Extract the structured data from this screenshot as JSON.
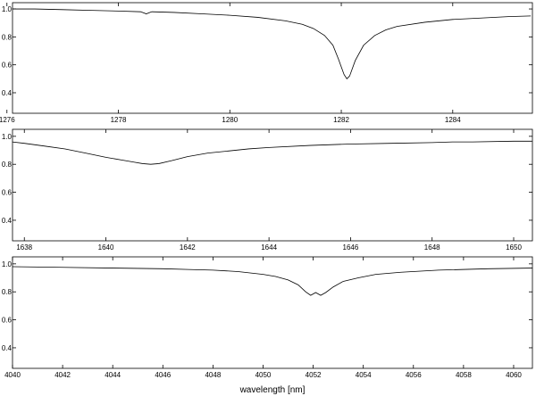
{
  "chart_data": [
    {
      "type": "line",
      "xlim": [
        1276.1,
        1285.43
      ],
      "ylim": [
        0.253,
        1.045
      ],
      "xticks": [
        1276,
        1278,
        1280,
        1282,
        1284
      ],
      "yticks": [
        0.4,
        0.6,
        0.8,
        {
          "value": 1,
          "label": "1.0"
        }
      ],
      "series": [
        {
          "color": "#000000",
          "x": [
            1276.1,
            1276.5,
            1277,
            1277.5,
            1278,
            1278.4,
            1278.5,
            1278.6,
            1279,
            1279.5,
            1280,
            1280.5,
            1281,
            1281.3,
            1281.5,
            1281.7,
            1281.85,
            1281.95,
            1282.05,
            1282.1,
            1282.15,
            1282.25,
            1282.4,
            1282.6,
            1282.8,
            1283,
            1283.5,
            1284,
            1284.5,
            1285,
            1285.4
          ],
          "values": [
            1.0,
            1.0,
            0.995,
            0.99,
            0.985,
            0.98,
            0.965,
            0.98,
            0.975,
            0.965,
            0.955,
            0.94,
            0.915,
            0.89,
            0.86,
            0.81,
            0.74,
            0.64,
            0.53,
            0.5,
            0.52,
            0.63,
            0.74,
            0.81,
            0.85,
            0.875,
            0.905,
            0.925,
            0.935,
            0.945,
            0.95
          ]
        }
      ]
    },
    {
      "type": "line",
      "xlim": [
        1637.71,
        1650.46
      ],
      "ylim": [
        0.253,
        1.05
      ],
      "xticks": [
        1638,
        1640,
        1642,
        1644,
        1646,
        1648,
        1650
      ],
      "yticks": [
        0.4,
        0.6,
        0.8,
        {
          "value": 1,
          "label": "1.0"
        }
      ],
      "series": [
        {
          "color": "#000000",
          "x": [
            1637.7,
            1638,
            1638.5,
            1639,
            1639.5,
            1640,
            1640.4,
            1640.7,
            1640.9,
            1641.1,
            1641.3,
            1641.6,
            1642,
            1642.5,
            1643,
            1643.5,
            1644,
            1645,
            1646,
            1647,
            1648,
            1648.5,
            1649,
            1650,
            1650.45
          ],
          "values": [
            0.96,
            0.95,
            0.93,
            0.91,
            0.88,
            0.85,
            0.83,
            0.815,
            0.805,
            0.8,
            0.805,
            0.825,
            0.855,
            0.88,
            0.895,
            0.91,
            0.92,
            0.935,
            0.945,
            0.95,
            0.955,
            0.96,
            0.96,
            0.965,
            0.965
          ]
        }
      ]
    },
    {
      "type": "line",
      "xlabel": "wavelength [nm]",
      "xlim": [
        4040,
        4060.75
      ],
      "ylim": [
        0.253,
        1.05
      ],
      "xticks": [
        4040,
        4042,
        4044,
        4046,
        4048,
        4050,
        4052,
        4054,
        4056,
        4058,
        4060
      ],
      "yticks": [
        0.4,
        0.6,
        0.8,
        {
          "value": 1,
          "label": "1.0"
        }
      ],
      "series": [
        {
          "color": "#000000",
          "x": [
            4040,
            4042,
            4044,
            4046,
            4047,
            4048,
            4049,
            4050,
            4050.5,
            4051,
            4051.4,
            4051.7,
            4051.9,
            4052.1,
            4052.3,
            4052.5,
            4052.8,
            4053.2,
            4053.8,
            4054.5,
            4055.5,
            4057,
            4059,
            4060.75
          ],
          "values": [
            0.98,
            0.975,
            0.97,
            0.965,
            0.96,
            0.955,
            0.945,
            0.925,
            0.91,
            0.885,
            0.85,
            0.8,
            0.775,
            0.795,
            0.775,
            0.795,
            0.835,
            0.875,
            0.9,
            0.925,
            0.94,
            0.955,
            0.965,
            0.97
          ]
        }
      ]
    }
  ]
}
